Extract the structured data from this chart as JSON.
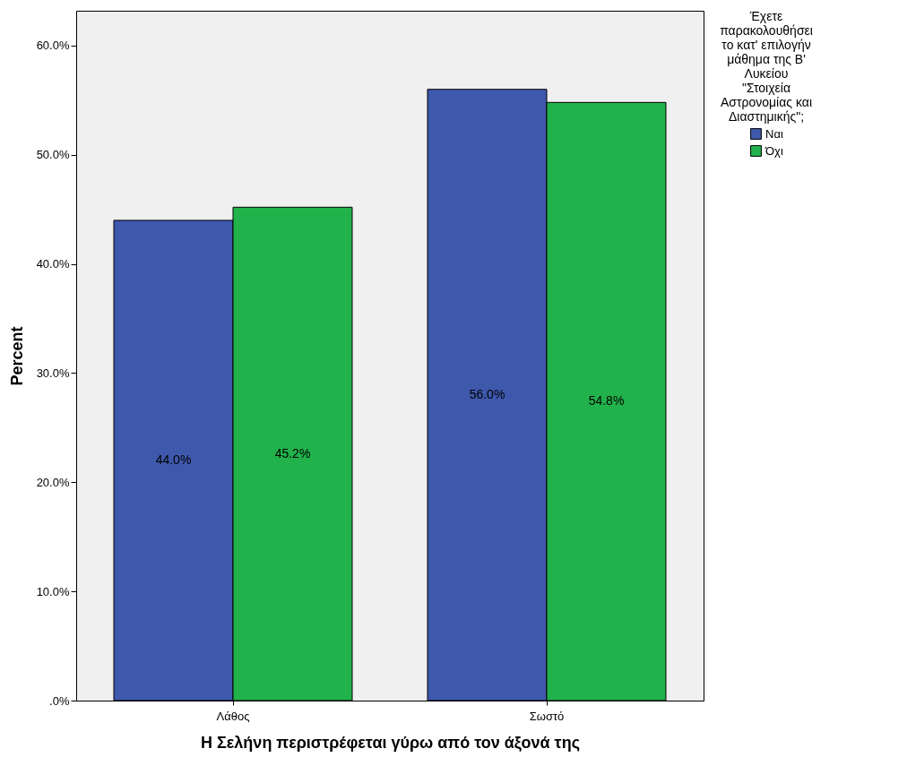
{
  "chart_data": {
    "type": "bar",
    "xlabel": "Η Σελήνη περιστρέφεται γύρω από τον άξονά της",
    "ylabel": "Percent",
    "legend_title": "Έχετε παρακολουθήσει το κατ' επιλογήν μάθημα της Β' Λυκείου \"Στοιχεία Αστρονομίας και Διαστημικής\";",
    "categories": [
      "Λάθος",
      "Σωστό"
    ],
    "series": [
      {
        "name": "Ναι",
        "color": "#3e58ac",
        "values": [
          44.0,
          56.0
        ],
        "value_labels": [
          "44.0%",
          "56.0%"
        ]
      },
      {
        "name": "Όχι",
        "color": "#22b24c",
        "values": [
          45.2,
          54.8
        ],
        "value_labels": [
          "45.2%",
          "54.8%"
        ]
      }
    ],
    "ylim": [
      0,
      63.2
    ],
    "yticks": [
      {
        "value": 0,
        "label": ".0%"
      },
      {
        "value": 10,
        "label": "10.0%"
      },
      {
        "value": 20,
        "label": "20.0%"
      },
      {
        "value": 30,
        "label": "30.0%"
      },
      {
        "value": 40,
        "label": "40.0%"
      },
      {
        "value": 50,
        "label": "50.0%"
      },
      {
        "value": 60,
        "label": "60.0%"
      }
    ],
    "grid": false,
    "legend": "top right"
  }
}
